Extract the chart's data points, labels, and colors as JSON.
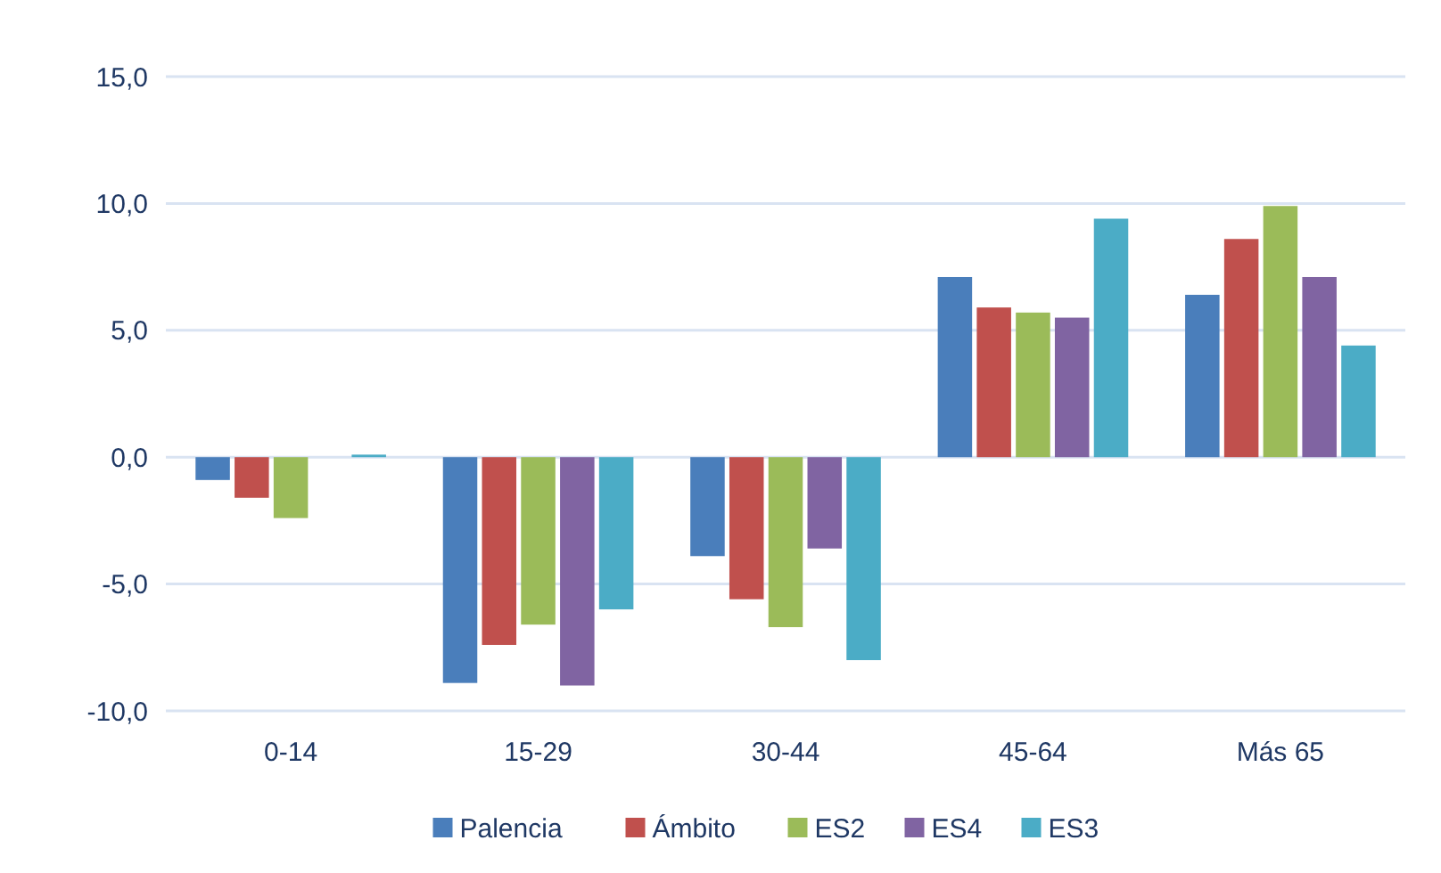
{
  "chart_data": {
    "type": "bar",
    "categories": [
      "0-14",
      "15-29",
      "30-44",
      "45-64",
      "Más 65"
    ],
    "series": [
      {
        "name": "Palencia",
        "color": "#4a7ebb",
        "values": [
          -0.9,
          -8.9,
          -3.9,
          7.1,
          6.4
        ]
      },
      {
        "name": "Ámbito",
        "color": "#c0504d",
        "values": [
          -1.6,
          -7.4,
          -5.6,
          5.9,
          8.6
        ]
      },
      {
        "name": "ES2",
        "color": "#9bbb59",
        "values": [
          -2.4,
          -6.6,
          -6.7,
          5.7,
          9.9
        ]
      },
      {
        "name": "ES4",
        "color": "#8064a2",
        "values": [
          0,
          -9.0,
          -3.6,
          5.5,
          7.1
        ]
      },
      {
        "name": "ES3",
        "color": "#4bacc6",
        "values": [
          0.1,
          -6.0,
          -8.0,
          9.4,
          4.4
        ]
      }
    ],
    "ylim": [
      -10,
      15
    ],
    "yticks": [
      {
        "value": -10,
        "label": "-10,0"
      },
      {
        "value": -5,
        "label": "-5,0"
      },
      {
        "value": 0,
        "label": "0,0"
      },
      {
        "value": 5,
        "label": "5,0"
      },
      {
        "value": 10,
        "label": "10,0"
      },
      {
        "value": 15,
        "label": "15,0"
      }
    ],
    "grid": "y",
    "legend": "bottom"
  }
}
